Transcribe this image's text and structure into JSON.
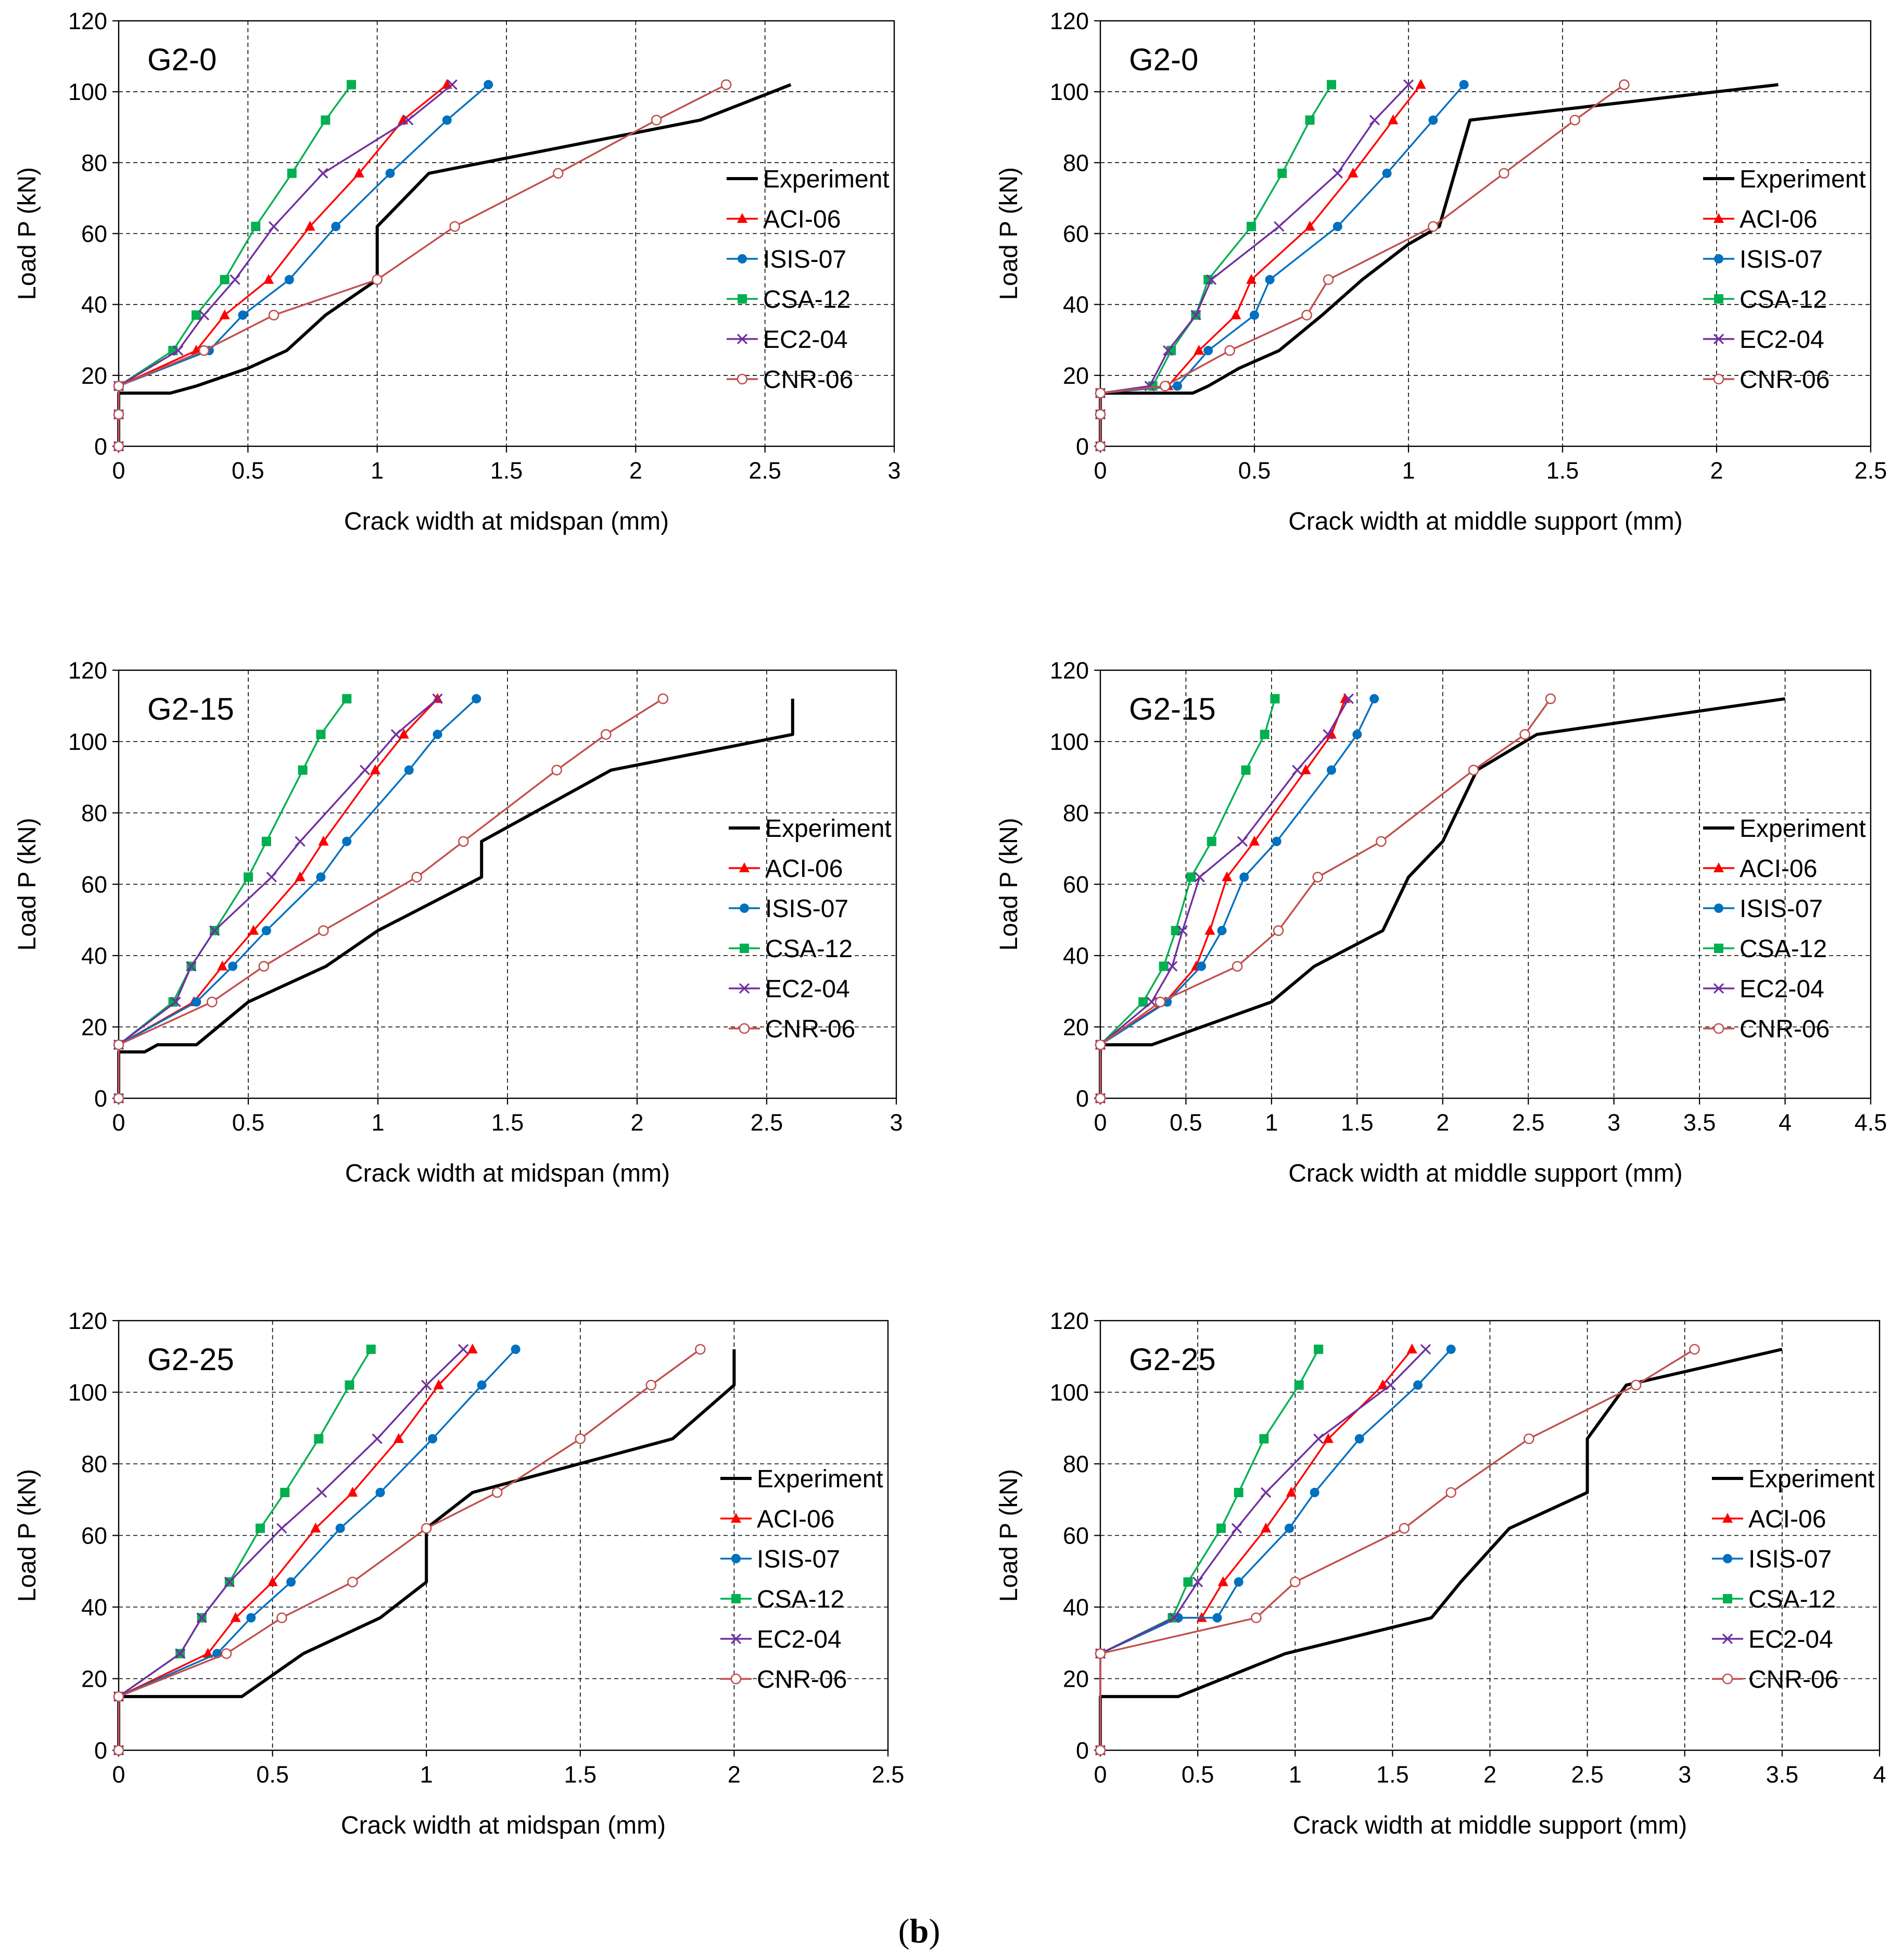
{
  "figure": {
    "caption_open": "(",
    "caption_bold": "b",
    "caption_close": ")"
  },
  "colors": {
    "Experiment": "#000000",
    "ACI-06": "#ff0000",
    "ISIS-07": "#0070c0",
    "CSA-12": "#00b050",
    "EC2-04": "#7030a0",
    "CNR-06": "#c0504d"
  },
  "chart_data": [
    {
      "type": "line",
      "title": "G2-0",
      "xlabel": "Crack width at midspan (mm)",
      "ylabel": "Load P (kN)",
      "xlim": [
        0,
        3
      ],
      "xstep": 0.5,
      "ylim": [
        0,
        120
      ],
      "ystep": 20,
      "legend": "right",
      "series": [
        {
          "name": "Experiment",
          "marker": "none",
          "x": [
            0,
            0,
            0.2,
            0.3,
            0.5,
            0.65,
            0.8,
            1.0,
            1.0,
            1.2,
            2.25,
            2.6
          ],
          "y": [
            0,
            15,
            15,
            17,
            22,
            27,
            37,
            47,
            62,
            77,
            92,
            102
          ]
        },
        {
          "name": "ACI-06",
          "marker": "triangle",
          "x": [
            0,
            0,
            0,
            0.3,
            0.41,
            0.58,
            0.74,
            0.93,
            1.1,
            1.27
          ],
          "y": [
            0,
            9,
            17,
            27,
            37,
            47,
            62,
            77,
            92,
            102
          ]
        },
        {
          "name": "ISIS-07",
          "marker": "circle",
          "x": [
            0,
            0,
            0,
            0.35,
            0.48,
            0.66,
            0.84,
            1.05,
            1.27,
            1.43
          ],
          "y": [
            0,
            9,
            17,
            27,
            37,
            47,
            62,
            77,
            92,
            102
          ]
        },
        {
          "name": "CSA-12",
          "marker": "square",
          "x": [
            0,
            0,
            0,
            0.21,
            0.3,
            0.41,
            0.53,
            0.67,
            0.8,
            0.9
          ],
          "y": [
            0,
            9,
            17,
            27,
            37,
            47,
            62,
            77,
            92,
            102
          ]
        },
        {
          "name": "EC2-04",
          "marker": "x",
          "x": [
            0,
            0,
            0,
            0.23,
            0.33,
            0.45,
            0.6,
            0.79,
            1.12,
            1.29
          ],
          "y": [
            0,
            9,
            17,
            27,
            37,
            47,
            62,
            77,
            92,
            102
          ]
        },
        {
          "name": "CNR-06",
          "marker": "opencircle",
          "x": [
            0,
            0,
            0,
            0.33,
            0.6,
            1.0,
            1.3,
            1.7,
            2.08,
            2.35
          ],
          "y": [
            0,
            9,
            17,
            27,
            37,
            47,
            62,
            77,
            92,
            102
          ]
        }
      ]
    },
    {
      "type": "line",
      "title": "G2-0",
      "xlabel": "Crack width at middle support (mm)",
      "ylabel": "Load P (kN)",
      "xlim": [
        0,
        2.5
      ],
      "xstep": 0.5,
      "ylim": [
        0,
        120
      ],
      "ystep": 20,
      "legend": "right",
      "series": [
        {
          "name": "Experiment",
          "marker": "none",
          "x": [
            0,
            0,
            0.3,
            0.35,
            0.45,
            0.58,
            0.72,
            0.85,
            1.0,
            1.1,
            1.2,
            1.7,
            2.2
          ],
          "y": [
            0,
            15,
            15,
            17,
            22,
            27,
            37,
            47,
            57,
            62,
            92,
            97,
            102
          ]
        },
        {
          "name": "ACI-06",
          "marker": "triangle",
          "x": [
            0,
            0,
            0,
            0.22,
            0.32,
            0.44,
            0.49,
            0.68,
            0.82,
            0.95,
            1.04
          ],
          "y": [
            0,
            9,
            15,
            17,
            27,
            37,
            47,
            62,
            77,
            92,
            102
          ]
        },
        {
          "name": "ISIS-07",
          "marker": "circle",
          "x": [
            0,
            0,
            0,
            0.25,
            0.35,
            0.5,
            0.55,
            0.77,
            0.93,
            1.08,
            1.18
          ],
          "y": [
            0,
            9,
            15,
            17,
            27,
            37,
            47,
            62,
            77,
            92,
            102
          ]
        },
        {
          "name": "CSA-12",
          "marker": "square",
          "x": [
            0,
            0,
            0,
            0.17,
            0.23,
            0.31,
            0.35,
            0.49,
            0.59,
            0.68,
            0.75
          ],
          "y": [
            0,
            9,
            15,
            17,
            27,
            37,
            47,
            62,
            77,
            92,
            102
          ]
        },
        {
          "name": "EC2-04",
          "marker": "x",
          "x": [
            0,
            0,
            0,
            0.16,
            0.22,
            0.31,
            0.36,
            0.58,
            0.77,
            0.89,
            1.0
          ],
          "y": [
            0,
            9,
            15,
            17,
            27,
            37,
            47,
            62,
            77,
            92,
            102
          ]
        },
        {
          "name": "CNR-06",
          "marker": "opencircle",
          "x": [
            0,
            0,
            0,
            0.21,
            0.42,
            0.67,
            0.74,
            1.08,
            1.31,
            1.54,
            1.7
          ],
          "y": [
            0,
            9,
            15,
            17,
            27,
            37,
            47,
            62,
            77,
            92,
            102
          ]
        }
      ]
    },
    {
      "type": "line",
      "title": "G2-15",
      "xlabel": "Crack width at midspan (mm)",
      "ylabel": "Load P (kN)",
      "xlim": [
        0,
        3
      ],
      "xstep": 0.5,
      "ylim": [
        0,
        120
      ],
      "ystep": 20,
      "legend": "right",
      "series": [
        {
          "name": "Experiment",
          "marker": "none",
          "x": [
            0,
            0,
            0.1,
            0.15,
            0.3,
            0.5,
            0.8,
            1.0,
            1.4,
            1.4,
            1.9,
            2.6,
            2.6
          ],
          "y": [
            0,
            13,
            13,
            15,
            15,
            27,
            37,
            47,
            62,
            72,
            92,
            102,
            112
          ]
        },
        {
          "name": "ACI-06",
          "marker": "triangle",
          "x": [
            0,
            0,
            0.29,
            0.4,
            0.52,
            0.7,
            0.79,
            0.99,
            1.1,
            1.23
          ],
          "y": [
            0,
            15,
            27,
            37,
            47,
            62,
            72,
            92,
            102,
            112
          ]
        },
        {
          "name": "ISIS-07",
          "marker": "circle",
          "x": [
            0,
            0,
            0.3,
            0.44,
            0.57,
            0.78,
            0.88,
            1.12,
            1.23,
            1.38
          ],
          "y": [
            0,
            15,
            27,
            37,
            47,
            62,
            72,
            92,
            102,
            112
          ]
        },
        {
          "name": "CSA-12",
          "marker": "square",
          "x": [
            0,
            0,
            0.21,
            0.28,
            0.37,
            0.5,
            0.57,
            0.71,
            0.78,
            0.88
          ],
          "y": [
            0,
            15,
            27,
            37,
            47,
            62,
            72,
            92,
            102,
            112
          ]
        },
        {
          "name": "EC2-04",
          "marker": "x",
          "x": [
            0,
            0,
            0.22,
            0.28,
            0.37,
            0.59,
            0.7,
            0.95,
            1.07,
            1.23
          ],
          "y": [
            0,
            15,
            27,
            37,
            47,
            62,
            72,
            92,
            102,
            112
          ]
        },
        {
          "name": "CNR-06",
          "marker": "opencircle",
          "x": [
            0,
            0,
            0.36,
            0.56,
            0.79,
            1.15,
            1.33,
            1.69,
            1.88,
            2.1
          ],
          "y": [
            0,
            15,
            27,
            37,
            47,
            62,
            72,
            92,
            102,
            112
          ]
        }
      ]
    },
    {
      "type": "line",
      "title": "G2-15",
      "xlabel": "Crack width at middle support (mm)",
      "ylabel": "Load P (kN)",
      "xlim": [
        0,
        4.5
      ],
      "xstep": 0.5,
      "ylim": [
        0,
        120
      ],
      "ystep": 20,
      "legend": "right",
      "series": [
        {
          "name": "Experiment",
          "marker": "none",
          "x": [
            0,
            0,
            0.3,
            1.0,
            1.25,
            1.65,
            1.8,
            2.0,
            2.2,
            2.55,
            4.0
          ],
          "y": [
            0,
            15,
            15,
            27,
            37,
            47,
            62,
            72,
            92,
            102,
            112
          ]
        },
        {
          "name": "ACI-06",
          "marker": "triangle",
          "x": [
            0,
            0,
            0.38,
            0.56,
            0.64,
            0.74,
            0.9,
            1.2,
            1.35,
            1.43
          ],
          "y": [
            0,
            15,
            27,
            37,
            47,
            62,
            72,
            92,
            102,
            112
          ]
        },
        {
          "name": "ISIS-07",
          "marker": "circle",
          "x": [
            0,
            0,
            0.39,
            0.59,
            0.71,
            0.84,
            1.03,
            1.35,
            1.5,
            1.6
          ],
          "y": [
            0,
            15,
            27,
            37,
            47,
            62,
            72,
            92,
            102,
            112
          ]
        },
        {
          "name": "CSA-12",
          "marker": "square",
          "x": [
            0,
            0,
            0.25,
            0.37,
            0.44,
            0.53,
            0.65,
            0.85,
            0.96,
            1.02
          ],
          "y": [
            0,
            15,
            27,
            37,
            47,
            62,
            72,
            92,
            102,
            112
          ]
        },
        {
          "name": "EC2-04",
          "marker": "x",
          "x": [
            0,
            0,
            0.3,
            0.42,
            0.48,
            0.58,
            0.83,
            1.15,
            1.33,
            1.45
          ],
          "y": [
            0,
            15,
            27,
            37,
            47,
            62,
            72,
            92,
            102,
            112
          ]
        },
        {
          "name": "CNR-06",
          "marker": "opencircle",
          "x": [
            0,
            0,
            0.35,
            0.8,
            1.04,
            1.27,
            1.64,
            2.18,
            2.48,
            2.63
          ],
          "y": [
            0,
            15,
            27,
            37,
            47,
            62,
            72,
            92,
            102,
            112
          ]
        }
      ]
    },
    {
      "type": "line",
      "title": "G2-25",
      "xlabel": "Crack width at midspan (mm)",
      "ylabel": "Load P (kN)",
      "xlim": [
        0,
        2.5
      ],
      "xstep": 0.5,
      "ylim": [
        0,
        120
      ],
      "ystep": 20,
      "legend": "right",
      "series": [
        {
          "name": "Experiment",
          "marker": "none",
          "x": [
            0,
            0,
            0.4,
            0.6,
            0.85,
            1.0,
            1.0,
            1.15,
            1.8,
            2.0,
            2.0
          ],
          "y": [
            0,
            15,
            15,
            27,
            37,
            47,
            62,
            72,
            87,
            102,
            112
          ]
        },
        {
          "name": "ACI-06",
          "marker": "triangle",
          "x": [
            0,
            0,
            0.29,
            0.38,
            0.5,
            0.64,
            0.76,
            0.91,
            1.04,
            1.15
          ],
          "y": [
            0,
            15,
            27,
            37,
            47,
            62,
            72,
            87,
            102,
            112
          ]
        },
        {
          "name": "ISIS-07",
          "marker": "circle",
          "x": [
            0,
            0,
            0.32,
            0.43,
            0.56,
            0.72,
            0.85,
            1.02,
            1.18,
            1.29
          ],
          "y": [
            0,
            15,
            27,
            37,
            47,
            62,
            72,
            87,
            102,
            112
          ]
        },
        {
          "name": "CSA-12",
          "marker": "square",
          "x": [
            0,
            0,
            0.2,
            0.27,
            0.36,
            0.46,
            0.54,
            0.65,
            0.75,
            0.82
          ],
          "y": [
            0,
            15,
            27,
            37,
            47,
            62,
            72,
            87,
            102,
            112
          ]
        },
        {
          "name": "EC2-04",
          "marker": "x",
          "x": [
            0,
            0,
            0.2,
            0.27,
            0.36,
            0.53,
            0.66,
            0.84,
            1.0,
            1.12
          ],
          "y": [
            0,
            15,
            27,
            37,
            47,
            62,
            72,
            87,
            102,
            112
          ]
        },
        {
          "name": "CNR-06",
          "marker": "opencircle",
          "x": [
            0,
            0,
            0.35,
            0.53,
            0.76,
            1.0,
            1.23,
            1.5,
            1.73,
            1.89
          ],
          "y": [
            0,
            15,
            27,
            37,
            47,
            62,
            72,
            87,
            102,
            112
          ]
        }
      ]
    },
    {
      "type": "line",
      "title": "G2-25",
      "xlabel": "Crack width at middle support (mm)",
      "ylabel": "Load P (kN)",
      "xlim": [
        0,
        4
      ],
      "xstep": 0.5,
      "ylim": [
        0,
        120
      ],
      "ystep": 20,
      "legend": "right",
      "series": [
        {
          "name": "Experiment",
          "marker": "none",
          "x": [
            0,
            0,
            0.4,
            0.95,
            1.7,
            1.85,
            2.1,
            2.5,
            2.5,
            2.7,
            3.5
          ],
          "y": [
            0,
            15,
            15,
            27,
            37,
            47,
            62,
            72,
            87,
            102,
            112
          ]
        },
        {
          "name": "ACI-06",
          "marker": "triangle",
          "x": [
            0,
            0,
            0.38,
            0.52,
            0.63,
            0.85,
            0.98,
            1.17,
            1.45,
            1.6
          ],
          "y": [
            0,
            27,
            37,
            37,
            47,
            62,
            72,
            87,
            102,
            112
          ]
        },
        {
          "name": "ISIS-07",
          "marker": "circle",
          "x": [
            0,
            0,
            0.4,
            0.6,
            0.71,
            0.97,
            1.1,
            1.33,
            1.63,
            1.8
          ],
          "y": [
            0,
            27,
            37,
            37,
            47,
            62,
            72,
            87,
            102,
            112
          ]
        },
        {
          "name": "CSA-12",
          "marker": "square",
          "x": [
            0,
            0,
            0.37,
            0.45,
            0.62,
            0.71,
            0.84,
            1.02,
            1.12
          ],
          "y": [
            0,
            27,
            37,
            47,
            62,
            72,
            87,
            102,
            112
          ]
        },
        {
          "name": "EC2-04",
          "marker": "x",
          "x": [
            0,
            0,
            0.38,
            0.5,
            0.7,
            0.85,
            1.12,
            1.49,
            1.67
          ],
          "y": [
            0,
            27,
            37,
            47,
            62,
            72,
            87,
            102,
            112
          ]
        },
        {
          "name": "CNR-06",
          "marker": "opencircle",
          "x": [
            0,
            0,
            0.8,
            1.0,
            1.56,
            1.8,
            2.2,
            2.75,
            3.05
          ],
          "y": [
            0,
            27,
            37,
            47,
            62,
            72,
            87,
            102,
            112
          ]
        }
      ]
    }
  ]
}
